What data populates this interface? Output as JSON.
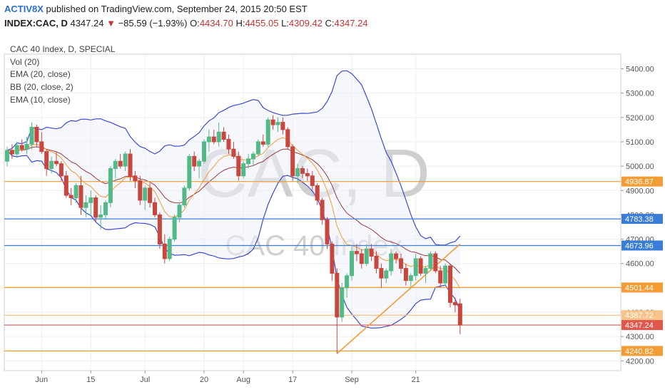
{
  "header": {
    "author": "ACTIV8X",
    "published_text": "published on TradingView.com, September 24, 2015 20:50 EST",
    "symbol": "INDEX:CAC, D",
    "last": "4347.24",
    "change": "−85.59 (−1.93%)",
    "ohlc": [
      {
        "key": "O:",
        "value": "4434.70"
      },
      {
        "key": "H:",
        "value": "4455.05"
      },
      {
        "key": "L:",
        "value": "4309.42"
      },
      {
        "key": "C:",
        "value": "4347.24"
      }
    ]
  },
  "chart_data": {
    "type": "candlestick",
    "title": "CAC 40 Index, D, SPECIAL",
    "indicators": [
      "Vol (20)",
      "EMA (20, close)",
      "BB (20, close, 2)",
      "EMA (10, close)"
    ],
    "watermark": {
      "symbol": "CAC, D",
      "name": "CAC 40 Index"
    },
    "ylim": [
      4160,
      5460
    ],
    "y_ticks": [
      4200,
      4300,
      4400,
      4500,
      4600,
      4700,
      4800,
      4900,
      5000,
      5100,
      5200,
      5300,
      5400
    ],
    "y_tick_labels": [
      "4200.00",
      "4300.00",
      "4400.00",
      "4500.00",
      "4600.00",
      "4700.00",
      "4800.00",
      "4900.00",
      "5000.00",
      "5100.00",
      "5200.00",
      "5300.00",
      "5400.00"
    ],
    "x_ticks": [
      {
        "label": "Jun",
        "index": 7
      },
      {
        "label": "15",
        "index": 17
      },
      {
        "label": "Jul",
        "index": 28
      },
      {
        "label": "20",
        "index": 40
      },
      {
        "label": "Aug",
        "index": 48
      },
      {
        "label": "17",
        "index": 58
      },
      {
        "label": "Sep",
        "index": 70
      },
      {
        "label": "21",
        "index": 83
      }
    ],
    "ohlc": [
      [
        5020,
        5080,
        5000,
        5065
      ],
      [
        5065,
        5090,
        5030,
        5050
      ],
      [
        5050,
        5100,
        5040,
        5085
      ],
      [
        5085,
        5110,
        5060,
        5070
      ],
      [
        5070,
        5120,
        5050,
        5090
      ],
      [
        5090,
        5180,
        5070,
        5160
      ],
      [
        5160,
        5170,
        5080,
        5100
      ],
      [
        5100,
        5140,
        5050,
        5060
      ],
      [
        5060,
        5070,
        4960,
        4990
      ],
      [
        4990,
        5040,
        4970,
        5020
      ],
      [
        5020,
        5060,
        5000,
        5010
      ],
      [
        5010,
        5020,
        4940,
        4960
      ],
      [
        4960,
        4980,
        4870,
        4880
      ],
      [
        4880,
        4910,
        4840,
        4870
      ],
      [
        4870,
        4930,
        4850,
        4920
      ],
      [
        4920,
        4960,
        4800,
        4830
      ],
      [
        4830,
        4880,
        4790,
        4850
      ],
      [
        4850,
        4900,
        4800,
        4870
      ],
      [
        4870,
        4880,
        4770,
        4790
      ],
      [
        4790,
        4840,
        4740,
        4800
      ],
      [
        4800,
        4860,
        4780,
        4850
      ],
      [
        4850,
        5000,
        4830,
        4990
      ],
      [
        4990,
        5030,
        4950,
        5020
      ],
      [
        5020,
        5050,
        4990,
        5000
      ],
      [
        5000,
        5060,
        4980,
        5050
      ],
      [
        5050,
        5070,
        4940,
        4960
      ],
      [
        4960,
        4980,
        4910,
        4940
      ],
      [
        4940,
        4960,
        4840,
        4860
      ],
      [
        4860,
        4920,
        4820,
        4910
      ],
      [
        4910,
        4930,
        4830,
        4850
      ],
      [
        4850,
        4870,
        4790,
        4800
      ],
      [
        4800,
        4810,
        4660,
        4680
      ],
      [
        4680,
        4720,
        4600,
        4620
      ],
      [
        4620,
        4710,
        4610,
        4700
      ],
      [
        4700,
        4800,
        4690,
        4790
      ],
      [
        4790,
        4850,
        4770,
        4840
      ],
      [
        4840,
        4920,
        4830,
        4910
      ],
      [
        4910,
        5050,
        4900,
        5040
      ],
      [
        5040,
        5060,
        4980,
        5000
      ],
      [
        5000,
        5030,
        4950,
        5020
      ],
      [
        5020,
        5110,
        5010,
        5100
      ],
      [
        5100,
        5150,
        5060,
        5120
      ],
      [
        5120,
        5150,
        5090,
        5100
      ],
      [
        5100,
        5180,
        5080,
        5140
      ],
      [
        5140,
        5160,
        5100,
        5110
      ],
      [
        5110,
        5130,
        5050,
        5070
      ],
      [
        5070,
        5100,
        5030,
        5040
      ],
      [
        5040,
        5060,
        4940,
        4960
      ],
      [
        4960,
        5020,
        4950,
        5010
      ],
      [
        5010,
        5050,
        4990,
        5030
      ],
      [
        5030,
        5060,
        5000,
        5050
      ],
      [
        5050,
        5110,
        5040,
        5100
      ],
      [
        5100,
        5130,
        5080,
        5090
      ],
      [
        5090,
        5200,
        5080,
        5190
      ],
      [
        5190,
        5210,
        5150,
        5170
      ],
      [
        5170,
        5200,
        5140,
        5180
      ],
      [
        5180,
        5200,
        5130,
        5150
      ],
      [
        5150,
        5160,
        5070,
        5080
      ],
      [
        5080,
        5090,
        4940,
        4960
      ],
      [
        4960,
        5010,
        4930,
        4990
      ],
      [
        4990,
        5000,
        4950,
        4970
      ],
      [
        4970,
        4990,
        4940,
        4960
      ],
      [
        4960,
        4980,
        4900,
        4920
      ],
      [
        4920,
        4930,
        4840,
        4860
      ],
      [
        4860,
        4870,
        4760,
        4780
      ],
      [
        4780,
        4790,
        4660,
        4680
      ],
      [
        4680,
        4690,
        4530,
        4560
      ],
      [
        4560,
        4580,
        4230,
        4380
      ],
      [
        4380,
        4520,
        4360,
        4500
      ],
      [
        4500,
        4560,
        4460,
        4550
      ],
      [
        4550,
        4670,
        4530,
        4650
      ],
      [
        4650,
        4680,
        4610,
        4640
      ],
      [
        4640,
        4660,
        4580,
        4600
      ],
      [
        4600,
        4680,
        4590,
        4660
      ],
      [
        4660,
        4680,
        4610,
        4630
      ],
      [
        4630,
        4650,
        4560,
        4580
      ],
      [
        4580,
        4600,
        4500,
        4540
      ],
      [
        4540,
        4580,
        4520,
        4570
      ],
      [
        4570,
        4660,
        4550,
        4640
      ],
      [
        4640,
        4650,
        4600,
        4620
      ],
      [
        4620,
        4640,
        4560,
        4580
      ],
      [
        4580,
        4600,
        4510,
        4530
      ],
      [
        4530,
        4560,
        4500,
        4550
      ],
      [
        4550,
        4640,
        4530,
        4620
      ],
      [
        4620,
        4630,
        4550,
        4560
      ],
      [
        4560,
        4590,
        4520,
        4580
      ],
      [
        4580,
        4650,
        4570,
        4640
      ],
      [
        4640,
        4650,
        4560,
        4570
      ],
      [
        4570,
        4590,
        4500,
        4520
      ],
      [
        4520,
        4600,
        4510,
        4590
      ],
      [
        4590,
        4600,
        4420,
        4440
      ],
      [
        4440,
        4460,
        4400,
        4430
      ],
      [
        4434.7,
        4455.05,
        4309.42,
        4347.24
      ]
    ],
    "horizontal_levels": [
      {
        "value": 4936.87,
        "label": "4936.87",
        "color": "#f39c33"
      },
      {
        "value": 4783.38,
        "label": "4783.38",
        "color": "#3a7dd8"
      },
      {
        "value": 4673.96,
        "label": "4673.96",
        "color": "#3a7dd8"
      },
      {
        "value": 4501.44,
        "label": "4501.44",
        "color": "#f39c33"
      },
      {
        "value": 4387.72,
        "label": "4387.72",
        "color": "#f6c38a"
      },
      {
        "value": 4347.24,
        "label": "4347.24",
        "color": "#e2574c"
      },
      {
        "value": 4240.82,
        "label": "4240.82",
        "color": "#f39c33"
      }
    ],
    "trendline": {
      "start": {
        "index": 67,
        "value": 4230
      },
      "end": {
        "index": 92,
        "value": 4680
      },
      "color": "#f39c33"
    },
    "colors": {
      "up": "#53b987",
      "down": "#c8463d",
      "bb": "#3a4bd1",
      "ema20": "#9b3b3b",
      "ema10": "#f39c33",
      "grid": "#eeeeee"
    }
  }
}
